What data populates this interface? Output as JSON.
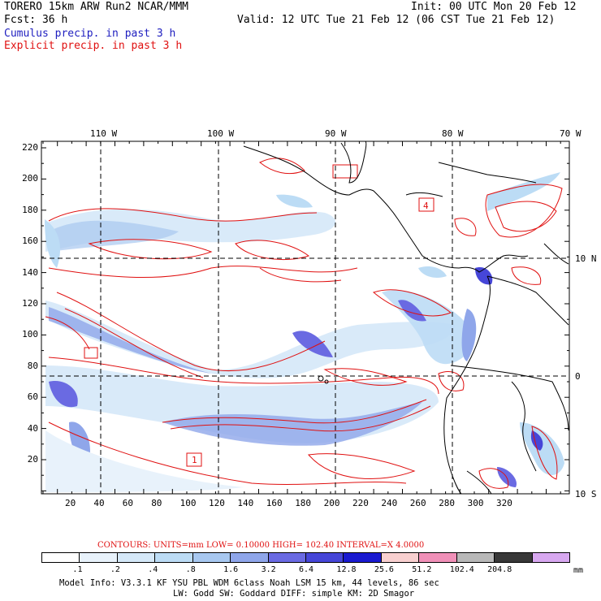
{
  "header": {
    "model": "TORERO  15km ARW   Run2   NCAR/MMM",
    "init": "Init: 00 UTC Mon 20 Feb 12",
    "fcst": "Fcst:   36 h",
    "valid": "Valid: 12 UTC Tue 21 Feb 12 (06 CST Tue 21 Feb 12)",
    "cumulus": "Cumulus precip. in past 3 h",
    "explicit": "Explicit precip. in past 3 h"
  },
  "colors": {
    "cumulus_title": "#2020c0",
    "explicit_title": "#e01010",
    "contour": "#e01010",
    "grid": "#000000"
  },
  "map": {
    "lon_labels": [
      "110 W",
      "100 W",
      "90 W",
      "80 W",
      "70 W"
    ],
    "lat_labels": [
      "10 N",
      "0",
      "10 S"
    ],
    "y_ticks": [
      "220",
      "200",
      "180",
      "160",
      "140",
      "120",
      "100",
      "80",
      "60",
      "40",
      "20"
    ],
    "x_ticks": [
      "20",
      "40",
      "60",
      "80",
      "100",
      "120",
      "140",
      "160",
      "180",
      "200",
      "220",
      "240",
      "260",
      "280",
      "300",
      "320"
    ],
    "box_labels": [
      "4",
      "1"
    ]
  },
  "contours_caption": {
    "text": "CONTOURS:  UNITS=mm  LOW= 0.10000      HIGH=  102.40      INTERVAL=X  4.0000"
  },
  "colorbar": {
    "labels": [
      ".1",
      ".2",
      ".4",
      ".8",
      "1.6",
      "3.2",
      "6.4",
      "12.8",
      "25.6",
      "51.2",
      "102.4",
      "204.8"
    ],
    "unit": "mm",
    "colors": [
      "#ffffff",
      "#e8f2fb",
      "#d5e8f8",
      "#bcdcf5",
      "#a8c8f0",
      "#8fa6ea",
      "#6a6ae2",
      "#4646d8",
      "#1a1ad0",
      "#f8d0d0",
      "#f090b8",
      "#b8b8b8",
      "#383838",
      "#d8a8f0"
    ]
  },
  "footer": {
    "line1": "Model Info: V3.3.1    KF     YSU PBL   WDM 6class   Noah LSM   15 km,    44 levels,     86 sec",
    "line2": "LW: Godd SW: Goddard DIFF: simple KM: 2D Smagor"
  }
}
